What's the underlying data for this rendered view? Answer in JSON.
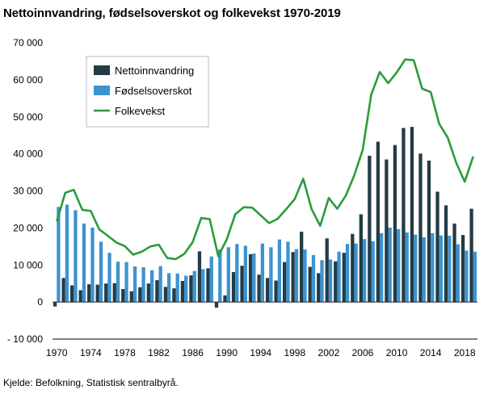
{
  "title": "Nettoinnvandring, fødselsoverskot og folkevekst 1970-2019",
  "source": "Kjelde: Befolkning, Statistisk sentralbyrå.",
  "colors": {
    "netto": "#233c45",
    "fodsel": "#3d93d0",
    "folkevekst": "#2a9b3c",
    "zero_line": "#222222",
    "axis_line": "#000000"
  },
  "chart_data": {
    "type": "bar",
    "title": "Nettoinnvandring, fødselsoverskot og folkevekst 1970-2019",
    "xlabel": "",
    "ylabel": "",
    "ylim": [
      -10000,
      70000
    ],
    "grid": false,
    "legend_position": "top-left",
    "categories": [
      1970,
      1971,
      1972,
      1973,
      1974,
      1975,
      1976,
      1977,
      1978,
      1979,
      1980,
      1981,
      1982,
      1983,
      1984,
      1985,
      1986,
      1987,
      1988,
      1989,
      1990,
      1991,
      1992,
      1993,
      1994,
      1995,
      1996,
      1997,
      1998,
      1999,
      2000,
      2001,
      2002,
      2003,
      2004,
      2005,
      2006,
      2007,
      2008,
      2009,
      2010,
      2011,
      2012,
      2013,
      2014,
      2015,
      2016,
      2017,
      2018,
      2019
    ],
    "x_tick_labels": [
      "1970",
      "1974",
      "1978",
      "1982",
      "1986",
      "1990",
      "1994",
      "1998",
      "2002",
      "2006",
      "2010",
      "2014",
      "2018"
    ],
    "y_ticks": [
      -10000,
      0,
      10000,
      20000,
      30000,
      40000,
      50000,
      60000,
      70000
    ],
    "y_tick_labels": [
      "- 10 000",
      "0",
      "10 000",
      "20 000",
      "30 000",
      "40 000",
      "50 000",
      "60 000",
      "70 000"
    ],
    "series": [
      {
        "name": "Nettoinnvandring",
        "kind": "bar",
        "color": "#233c45",
        "values": [
          -1200,
          6500,
          4500,
          3200,
          4800,
          4700,
          5000,
          5100,
          3500,
          2900,
          4000,
          5000,
          5900,
          4100,
          3700,
          5700,
          7200,
          13700,
          9100,
          -1500,
          1800,
          8100,
          9800,
          12900,
          7400,
          6500,
          5800,
          10800,
          13500,
          19000,
          9500,
          7800,
          17200,
          11000,
          13300,
          18400,
          23700,
          39500,
          43300,
          38500,
          42400,
          47000,
          47300,
          40100,
          38200,
          29800,
          26100,
          21200,
          18100,
          25200
        ]
      },
      {
        "name": "Fødselsoverskot",
        "kind": "bar",
        "color": "#3d93d0",
        "values": [
          25700,
          26300,
          24800,
          21200,
          20100,
          16300,
          13300,
          10900,
          10800,
          9600,
          9400,
          8600,
          9700,
          7800,
          7700,
          7100,
          8400,
          8900,
          12300,
          14200,
          14800,
          15700,
          15200,
          13100,
          15800,
          14800,
          16900,
          16300,
          14300,
          14200,
          12700,
          11300,
          11500,
          13600,
          15700,
          15800,
          17000,
          16400,
          18600,
          20100,
          19700,
          18800,
          18200,
          17500,
          18600,
          18000,
          17900,
          15600,
          13900,
          13600
        ]
      },
      {
        "name": "Folkevekst",
        "kind": "line",
        "color": "#2a9b3c",
        "values": [
          21800,
          29500,
          30300,
          24900,
          24600,
          19600,
          17900,
          16100,
          15100,
          12800,
          13600,
          15000,
          15500,
          11900,
          11600,
          13000,
          16200,
          22700,
          22400,
          12400,
          16900,
          23700,
          25600,
          25500,
          23400,
          21300,
          22500,
          25100,
          27800,
          33300,
          25000,
          20600,
          28100,
          25200,
          28700,
          34200,
          41100,
          56000,
          62100,
          59100,
          62000,
          65500,
          65300,
          57600,
          56700,
          48100,
          44400,
          37600,
          32500,
          39300
        ]
      }
    ]
  }
}
